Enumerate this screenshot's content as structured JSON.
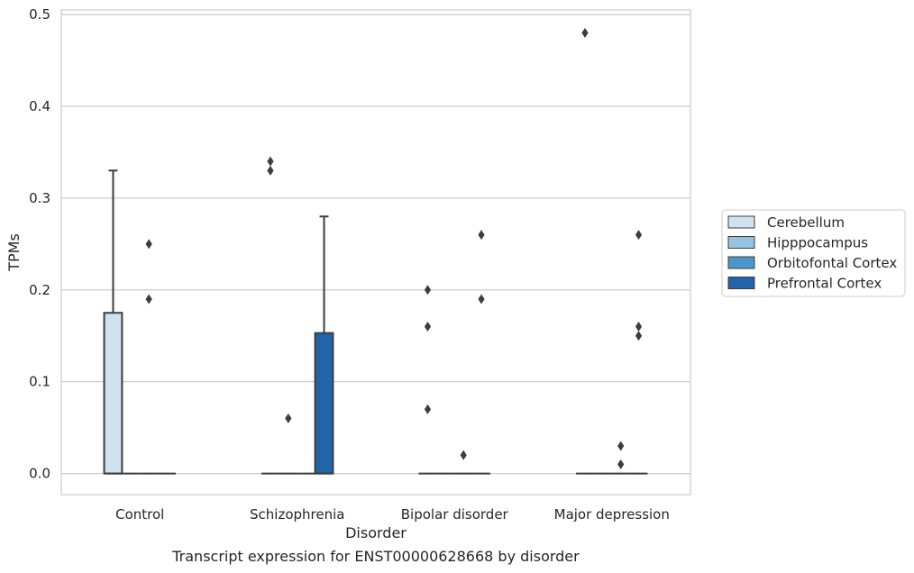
{
  "chart_data": {
    "type": "box",
    "title": "",
    "caption": "Transcript expression for ENST00000628668 by disorder",
    "xlabel": "Disorder",
    "ylabel": "TPMs",
    "ylim": [
      -0.023,
      0.505
    ],
    "yticks": [
      0.0,
      0.1,
      0.2,
      0.3,
      0.4,
      0.5
    ],
    "ytick_labels": [
      "0.0",
      "0.1",
      "0.2",
      "0.3",
      "0.4",
      "0.5"
    ],
    "categories": [
      "Control",
      "Schizophrenia",
      "Bipolar disorder",
      "Major depression"
    ],
    "grid": "horizontal",
    "legend_position": "right",
    "series": [
      {
        "name": "Cerebellum",
        "color": "#d0e1f2",
        "boxes": [
          {
            "q1": 0.0,
            "median": 0.0,
            "q3": 0.175,
            "whisker_low": 0.0,
            "whisker_high": 0.33,
            "outliers": []
          },
          {
            "q1": 0.0,
            "median": 0.0,
            "q3": 0.0,
            "whisker_low": 0.0,
            "whisker_high": 0.0,
            "outliers": [
              0.34,
              0.33
            ]
          },
          {
            "q1": 0.0,
            "median": 0.0,
            "q3": 0.0,
            "whisker_low": 0.0,
            "whisker_high": 0.0,
            "outliers": [
              0.2,
              0.16,
              0.07
            ]
          },
          {
            "q1": 0.0,
            "median": 0.0,
            "q3": 0.0,
            "whisker_low": 0.0,
            "whisker_high": 0.0,
            "outliers": [
              0.48
            ]
          }
        ]
      },
      {
        "name": "Hipppocampus",
        "color": "#94c4df",
        "boxes": [
          {
            "q1": 0.0,
            "median": 0.0,
            "q3": 0.0,
            "whisker_low": 0.0,
            "whisker_high": 0.0,
            "outliers": []
          },
          {
            "q1": 0.0,
            "median": 0.0,
            "q3": 0.0,
            "whisker_low": 0.0,
            "whisker_high": 0.0,
            "outliers": [
              0.06
            ]
          },
          {
            "q1": 0.0,
            "median": 0.0,
            "q3": 0.0,
            "whisker_low": 0.0,
            "whisker_high": 0.0,
            "outliers": []
          },
          {
            "q1": 0.0,
            "median": 0.0,
            "q3": 0.0,
            "whisker_low": 0.0,
            "whisker_high": 0.0,
            "outliers": []
          }
        ]
      },
      {
        "name": "Orbitofontal Cortex",
        "color": "#4a98c9",
        "boxes": [
          {
            "q1": 0.0,
            "median": 0.0,
            "q3": 0.0,
            "whisker_low": 0.0,
            "whisker_high": 0.0,
            "outliers": [
              0.25,
              0.19
            ]
          },
          {
            "q1": 0.0,
            "median": 0.0,
            "q3": 0.0,
            "whisker_low": 0.0,
            "whisker_high": 0.0,
            "outliers": []
          },
          {
            "q1": 0.0,
            "median": 0.0,
            "q3": 0.0,
            "whisker_low": 0.0,
            "whisker_high": 0.0,
            "outliers": [
              0.02
            ]
          },
          {
            "q1": 0.0,
            "median": 0.0,
            "q3": 0.0,
            "whisker_low": 0.0,
            "whisker_high": 0.0,
            "outliers": [
              0.03,
              0.01
            ]
          }
        ]
      },
      {
        "name": "Prefrontal Cortex",
        "color": "#2164aa",
        "boxes": [
          {
            "q1": 0.0,
            "median": 0.0,
            "q3": 0.0,
            "whisker_low": 0.0,
            "whisker_high": 0.0,
            "outliers": []
          },
          {
            "q1": 0.0,
            "median": 0.0,
            "q3": 0.153,
            "whisker_low": 0.0,
            "whisker_high": 0.28,
            "outliers": []
          },
          {
            "q1": 0.0,
            "median": 0.0,
            "q3": 0.0,
            "whisker_low": 0.0,
            "whisker_high": 0.0,
            "outliers": [
              0.26,
              0.19
            ]
          },
          {
            "q1": 0.0,
            "median": 0.0,
            "q3": 0.0,
            "whisker_low": 0.0,
            "whisker_high": 0.0,
            "outliers": [
              0.26,
              0.16,
              0.15
            ]
          }
        ]
      }
    ]
  }
}
